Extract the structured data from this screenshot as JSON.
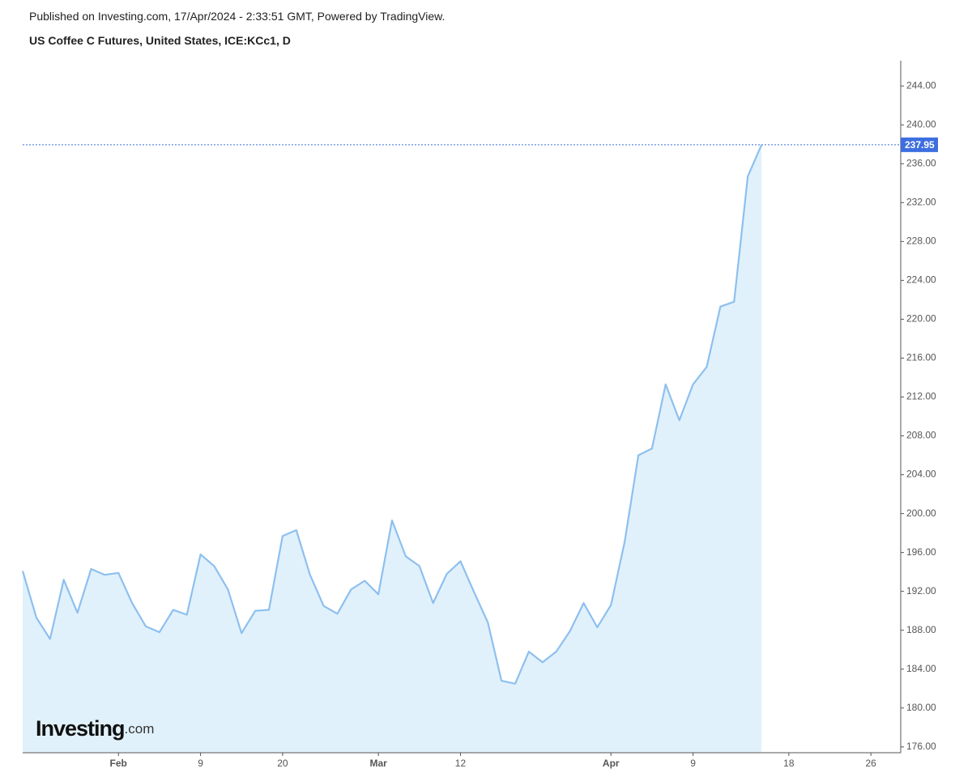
{
  "header": {
    "published": "Published on Investing.com, 17/Apr/2024 - 2:33:51 GMT, Powered by TradingView.",
    "title": "US Coffee C Futures, United States, ICE:KCc1, D"
  },
  "logo": {
    "brand": "Investing",
    "suffix": ".com"
  },
  "chart_data": {
    "type": "area",
    "line_color": "#8dc0ef",
    "fill_color": "#e1f1fb",
    "price_line_color": "#3d6ee0",
    "categories": [
      null,
      null,
      null,
      null,
      null,
      null,
      null,
      "Feb",
      null,
      null,
      null,
      null,
      null,
      "9",
      null,
      null,
      null,
      null,
      null,
      "20",
      null,
      null,
      null,
      null,
      null,
      null,
      "Mar",
      null,
      null,
      null,
      null,
      null,
      "12",
      null,
      null,
      null,
      null,
      null,
      null,
      null,
      null,
      null,
      null,
      "Apr",
      null,
      null,
      null,
      null,
      null,
      "9",
      null,
      null,
      null,
      null,
      null,
      null,
      "18",
      null,
      null,
      null,
      null,
      null,
      "26",
      null,
      null
    ],
    "values": [
      194.1,
      189.3,
      187.1,
      193.2,
      189.8,
      194.3,
      193.7,
      193.9,
      190.8,
      188.4,
      187.8,
      190.1,
      189.6,
      195.8,
      194.6,
      192.2,
      187.7,
      190.0,
      190.1,
      197.7,
      198.3,
      193.7,
      190.5,
      189.7,
      192.2,
      193.1,
      191.7,
      199.3,
      195.6,
      194.6,
      190.8,
      193.8,
      195.1,
      191.9,
      188.8,
      182.8,
      182.5,
      185.8,
      184.7,
      185.8,
      187.9,
      190.8,
      188.3,
      190.6,
      197.1,
      206.0,
      206.7,
      213.3,
      209.6,
      213.3,
      215.1,
      221.3,
      221.8,
      234.7,
      237.95,
      null,
      null,
      null,
      null,
      null,
      null,
      null,
      null,
      null,
      null
    ],
    "ylim": [
      175.4,
      246.6
    ],
    "yticks": [
      {
        "value": 176,
        "label": "176.00"
      },
      {
        "value": 180,
        "label": "180.00"
      },
      {
        "value": 184,
        "label": "184.00"
      },
      {
        "value": 188,
        "label": "188.00"
      },
      {
        "value": 192,
        "label": "192.00"
      },
      {
        "value": 196,
        "label": "196.00"
      },
      {
        "value": 200,
        "label": "200.00"
      },
      {
        "value": 204,
        "label": "204.00"
      },
      {
        "value": 208,
        "label": "208.00"
      },
      {
        "value": 212,
        "label": "212.00"
      },
      {
        "value": 216,
        "label": "216.00"
      },
      {
        "value": 220,
        "label": "220.00"
      },
      {
        "value": 224,
        "label": "224.00"
      },
      {
        "value": 228,
        "label": "228.00"
      },
      {
        "value": 232,
        "label": "232.00"
      },
      {
        "value": 236,
        "label": "236.00"
      },
      {
        "value": 240,
        "label": "240.00"
      },
      {
        "value": 244,
        "label": "244.00"
      }
    ]
  }
}
